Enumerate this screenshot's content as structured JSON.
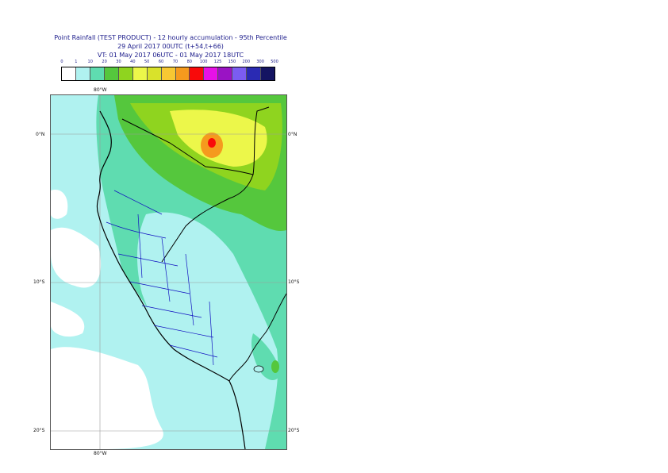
{
  "title": {
    "line1": "Point Rainfall (TEST PRODUCT) - 12 hourly accumulation - 95th Percentile",
    "line2": "29 April 2017 00UTC (t+54,t+66)",
    "line3": "VT: 01 May 2017 06UTC - 01 May 2017 18UTC"
  },
  "legend": {
    "labels": [
      "0",
      "1",
      "10",
      "20",
      "30",
      "40",
      "50",
      "60",
      "70",
      "80",
      "100",
      "125",
      "150",
      "200",
      "300",
      "500"
    ],
    "colors": [
      "#ffffff",
      "#b0f2f0",
      "#5fdcb0",
      "#55c73d",
      "#8fd41f",
      "#ecf74a",
      "#d9e22b",
      "#f7c833",
      "#f59a1e",
      "#f90a0a",
      "#e711e7",
      "#9a13c4",
      "#7b5cf2",
      "#2a2ab3",
      "#141462"
    ]
  },
  "map": {
    "lon_labels_top": [
      "80°W"
    ],
    "lon_labels_bottom": [
      "80°W"
    ],
    "lat_labels_left": [
      "0°N",
      "10°S",
      "20°S"
    ],
    "lat_labels_right": [
      "0°N",
      "10°S",
      "20°S"
    ],
    "colors": {
      "ocean_light": "#b0f2f0",
      "ocean_mid": "#5fdcb0",
      "green": "#55c73d",
      "lime": "#8fd41f",
      "yellow": "#ecf74a",
      "orange": "#f59a1e",
      "red": "#f90a0a",
      "border_country": "#000000",
      "border_region": "#1010c0"
    }
  }
}
